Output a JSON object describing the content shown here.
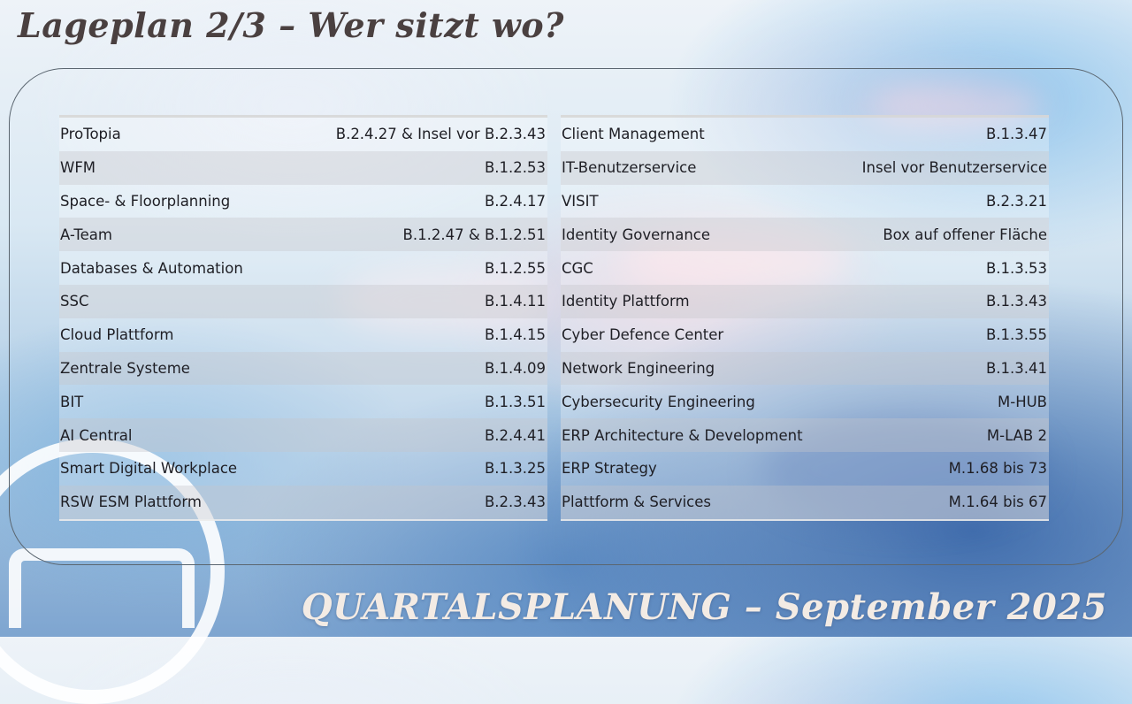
{
  "slide": {
    "title": "Lageplan 2/3 – Wer sitzt wo?",
    "footer": "QUARTALSPLANUNG – September 2025"
  },
  "teams_left": [
    {
      "name": "ProTopia",
      "room": "B.2.4.27 & Insel vor B.2.3.43"
    },
    {
      "name": "WFM",
      "room": "B.1.2.53"
    },
    {
      "name": "Space- & Floorplanning",
      "room": "B.2.4.17"
    },
    {
      "name": "A-Team",
      "room": "B.1.2.47 & B.1.2.51"
    },
    {
      "name": "Databases & Automation",
      "room": "B.1.2.55"
    },
    {
      "name": "SSC",
      "room": "B.1.4.11"
    },
    {
      "name": "Cloud Plattform",
      "room": "B.1.4.15"
    },
    {
      "name": "Zentrale Systeme",
      "room": "B.1.4.09"
    },
    {
      "name": "BIT",
      "room": "B.1.3.51"
    },
    {
      "name": "AI Central",
      "room": "B.2.4.41"
    },
    {
      "name": "Smart Digital Workplace",
      "room": "B.1.3.25"
    },
    {
      "name": "RSW ESM Plattform",
      "room": "B.2.3.43"
    }
  ],
  "teams_right": [
    {
      "name": "Client Management",
      "room": "B.1.3.47"
    },
    {
      "name": "IT-Benutzerservice",
      "room": "Insel vor Benutzerservice"
    },
    {
      "name": "VISIT",
      "room": "B.2.3.21"
    },
    {
      "name": "Identity Governance",
      "room": "Box auf offener Fläche"
    },
    {
      "name": "CGC",
      "room": "B.1.3.53"
    },
    {
      "name": "Identity Plattform",
      "room": "B.1.3.43"
    },
    {
      "name": "Cyber Defence Center",
      "room": "B.1.3.55"
    },
    {
      "name": "Network Engineering",
      "room": "B.1.3.41"
    },
    {
      "name": "Cybersecurity Engineering",
      "room": "M-HUB"
    },
    {
      "name": "ERP Architecture & Development",
      "room": "M-LAB 2"
    },
    {
      "name": "ERP Strategy",
      "room": "M.1.68 bis 73"
    },
    {
      "name": "Plattform & Services",
      "room": "M.1.64 bis 67"
    }
  ]
}
